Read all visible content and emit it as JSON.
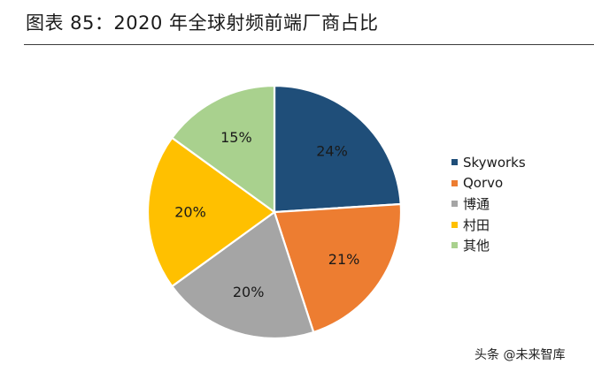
{
  "title": "图表 85：2020 年全球射频前端厂商占比",
  "chart_data": {
    "type": "pie",
    "title": "",
    "categories": [
      "Skyworks",
      "Qorvo",
      "博通",
      "村田",
      "其他"
    ],
    "values": [
      24,
      21,
      20,
      20,
      15
    ],
    "value_labels": [
      "24%",
      "21%",
      "20%",
      "20%",
      "15%"
    ],
    "colors": [
      "#1f4e79",
      "#ed7d31",
      "#a5a5a5",
      "#ffc000",
      "#a9d18e"
    ],
    "legend_position": "right"
  },
  "watermark": "头条 @未来智库"
}
